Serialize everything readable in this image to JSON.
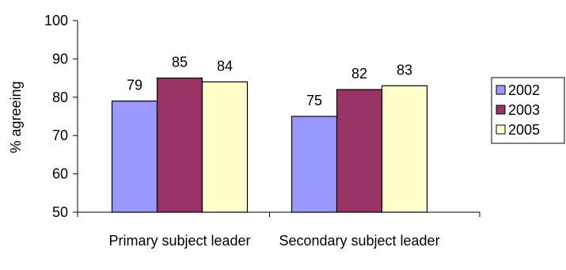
{
  "chart_data": {
    "type": "bar",
    "categories": [
      "Primary subject leader",
      "Secondary subject leader"
    ],
    "series": [
      {
        "name": "2002",
        "values": [
          79,
          75
        ],
        "color": "#9999FF"
      },
      {
        "name": "2003",
        "values": [
          85,
          82
        ],
        "color": "#993366"
      },
      {
        "name": "2005",
        "values": [
          84,
          83
        ],
        "color": "#FFFFCC"
      }
    ],
    "title": "",
    "xlabel": "",
    "ylabel": "% agreeing",
    "ylim": [
      50,
      100
    ],
    "yticks": [
      50,
      60,
      70,
      80,
      90,
      100
    ],
    "legend_position": "right",
    "grid": false,
    "data_labels": true
  }
}
